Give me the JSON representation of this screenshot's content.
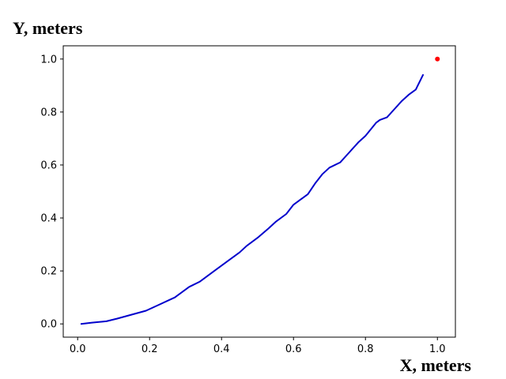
{
  "chart_data": {
    "type": "line",
    "title": "",
    "xlabel": "X, meters",
    "ylabel": "Y, meters",
    "xlim": [
      -0.04,
      1.05
    ],
    "ylim": [
      -0.05,
      1.05
    ],
    "x_ticks": [
      0.0,
      0.2,
      0.4,
      0.6,
      0.8,
      1.0
    ],
    "y_ticks": [
      0.0,
      0.2,
      0.4,
      0.6,
      0.8,
      1.0
    ],
    "x_tick_labels": [
      "0.0",
      "0.2",
      "0.4",
      "0.6",
      "0.8",
      "1.0"
    ],
    "y_tick_labels": [
      "0.0",
      "0.2",
      "0.4",
      "0.6",
      "0.8",
      "1.0"
    ],
    "grid": false,
    "series": [
      {
        "color": "#0000cc",
        "x": [
          0.01,
          0.04,
          0.08,
          0.11,
          0.15,
          0.19,
          0.23,
          0.27,
          0.31,
          0.34,
          0.38,
          0.42,
          0.45,
          0.47,
          0.5,
          0.53,
          0.55,
          0.58,
          0.6,
          0.62,
          0.64,
          0.66,
          0.68,
          0.7,
          0.73,
          0.75,
          0.78,
          0.8,
          0.83,
          0.84,
          0.86,
          0.88,
          0.9,
          0.92,
          0.94,
          0.96
        ],
        "y": [
          0.0,
          0.005,
          0.01,
          0.02,
          0.035,
          0.05,
          0.075,
          0.1,
          0.14,
          0.16,
          0.2,
          0.24,
          0.27,
          0.295,
          0.325,
          0.36,
          0.385,
          0.415,
          0.45,
          0.47,
          0.49,
          0.53,
          0.565,
          0.59,
          0.61,
          0.64,
          0.685,
          0.71,
          0.76,
          0.77,
          0.78,
          0.81,
          0.84,
          0.865,
          0.885,
          0.94
        ]
      }
    ],
    "points": [
      {
        "x": 1.0,
        "y": 1.0,
        "color": "#ff0000"
      }
    ]
  }
}
